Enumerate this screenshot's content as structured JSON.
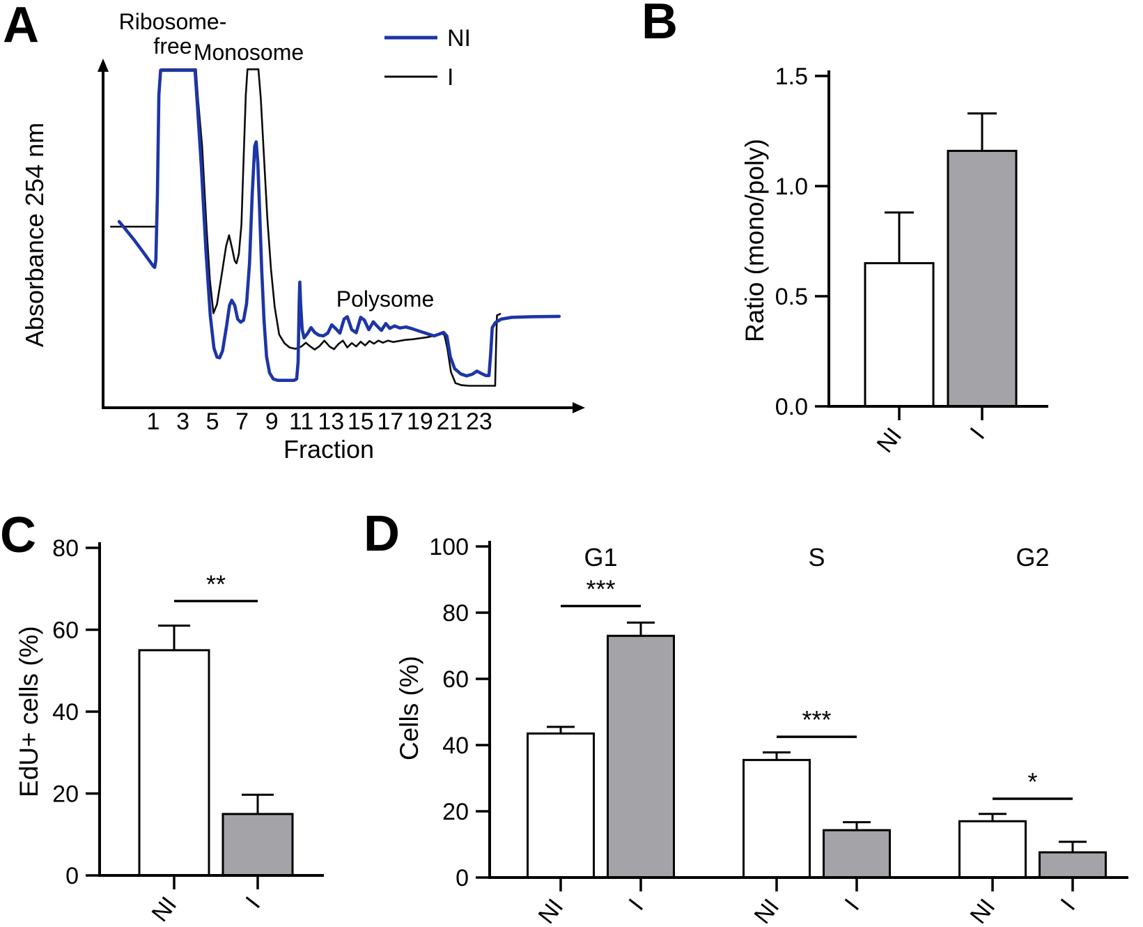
{
  "colors": {
    "ni_bar_fill": "#ffffff",
    "i_bar_fill": "#a3a3a8",
    "trace_blue": "#1d35a6",
    "trace_black": "#0a0a0a"
  },
  "chart_data": [
    {
      "panel_label": "A",
      "type": "line",
      "xlabel": "Fraction",
      "ylabel": "Absorbance 254 nm",
      "xlim": [
        -2.5,
        29.5
      ],
      "ylim": [
        0,
        1.05
      ],
      "x_ticks": [
        {
          "value": 1,
          "label": "1"
        },
        {
          "value": 3,
          "label": "3"
        },
        {
          "value": 5,
          "label": "5"
        },
        {
          "value": 7,
          "label": "7"
        },
        {
          "value": 9,
          "label": "9"
        },
        {
          "value": 11,
          "label": "11"
        },
        {
          "value": 13,
          "label": "13"
        },
        {
          "value": 15,
          "label": "15"
        },
        {
          "value": 17,
          "label": "17"
        },
        {
          "value": 19,
          "label": "19"
        },
        {
          "value": 21,
          "label": "21"
        },
        {
          "value": 23,
          "label": "23"
        }
      ],
      "annotations": {
        "ribosome_free_line1": "Ribosome-",
        "ribosome_free_line2": "free",
        "monosome": "Monosome",
        "polysome": "Polysome"
      },
      "legend": [
        {
          "name": "NI",
          "color": "#1d35a6"
        },
        {
          "name": "I",
          "color": "#0a0a0a"
        }
      ],
      "series": [
        {
          "name": "I",
          "color": "#0a0a0a",
          "stroke_width": 2.6,
          "points": [
            [
              -1.85,
              0.525
            ],
            [
              1.22,
              0.525
            ],
            [
              1.28,
              0.62
            ],
            [
              1.38,
              0.9
            ],
            [
              1.52,
              0.985
            ],
            [
              3.88,
              0.985
            ],
            [
              4.02,
              0.9
            ],
            [
              4.3,
              0.76
            ],
            [
              4.6,
              0.52
            ],
            [
              4.82,
              0.37
            ],
            [
              5.06,
              0.272
            ],
            [
              5.3,
              0.298
            ],
            [
              5.62,
              0.385
            ],
            [
              5.92,
              0.468
            ],
            [
              6.12,
              0.5
            ],
            [
              6.32,
              0.462
            ],
            [
              6.5,
              0.425
            ],
            [
              6.62,
              0.418
            ],
            [
              6.78,
              0.445
            ],
            [
              6.95,
              0.53
            ],
            [
              7.1,
              0.72
            ],
            [
              7.25,
              0.91
            ],
            [
              7.36,
              0.985
            ],
            [
              8.1,
              0.985
            ],
            [
              8.26,
              0.9
            ],
            [
              8.46,
              0.74
            ],
            [
              8.7,
              0.55
            ],
            [
              8.95,
              0.4
            ],
            [
              9.2,
              0.29
            ],
            [
              9.5,
              0.21
            ],
            [
              9.85,
              0.185
            ],
            [
              10.2,
              0.172
            ],
            [
              10.6,
              0.168
            ],
            [
              11.0,
              0.175
            ],
            [
              11.3,
              0.186
            ],
            [
              11.6,
              0.175
            ],
            [
              11.9,
              0.166
            ],
            [
              12.2,
              0.175
            ],
            [
              12.55,
              0.192
            ],
            [
              12.9,
              0.175
            ],
            [
              13.2,
              0.167
            ],
            [
              13.5,
              0.182
            ],
            [
              13.8,
              0.192
            ],
            [
              14.1,
              0.172
            ],
            [
              14.4,
              0.185
            ],
            [
              14.7,
              0.175
            ],
            [
              15.0,
              0.189
            ],
            [
              15.3,
              0.178
            ],
            [
              15.6,
              0.191
            ],
            [
              15.9,
              0.183
            ],
            [
              16.2,
              0.192
            ],
            [
              16.5,
              0.186
            ],
            [
              16.85,
              0.192
            ],
            [
              17.2,
              0.188
            ],
            [
              17.6,
              0.191
            ],
            [
              18.0,
              0.194
            ],
            [
              18.5,
              0.196
            ],
            [
              19.0,
              0.199
            ],
            [
              19.5,
              0.202
            ],
            [
              20.0,
              0.207
            ],
            [
              20.4,
              0.214
            ],
            [
              20.65,
              0.209
            ],
            [
              20.85,
              0.17
            ],
            [
              21.1,
              0.1
            ],
            [
              21.4,
              0.068
            ],
            [
              21.8,
              0.062
            ],
            [
              22.3,
              0.06
            ],
            [
              24.08,
              0.06
            ],
            [
              24.14,
              0.175
            ],
            [
              24.2,
              0.266
            ],
            [
              24.42,
              0.27
            ]
          ]
        },
        {
          "name": "NI",
          "color": "#1d35a6",
          "stroke_width": 4.6,
          "points": [
            [
              -1.3,
              0.54
            ],
            [
              -0.85,
              0.516
            ],
            [
              -0.3,
              0.487
            ],
            [
              0.25,
              0.455
            ],
            [
              0.7,
              0.428
            ],
            [
              1.0,
              0.41
            ],
            [
              1.1,
              0.406
            ],
            [
              1.18,
              0.428
            ],
            [
              1.28,
              0.62
            ],
            [
              1.38,
              0.91
            ],
            [
              1.5,
              0.982
            ],
            [
              3.82,
              0.982
            ],
            [
              3.98,
              0.88
            ],
            [
              4.25,
              0.7
            ],
            [
              4.55,
              0.46
            ],
            [
              4.85,
              0.265
            ],
            [
              5.1,
              0.17
            ],
            [
              5.3,
              0.144
            ],
            [
              5.48,
              0.142
            ],
            [
              5.68,
              0.162
            ],
            [
              5.95,
              0.235
            ],
            [
              6.15,
              0.295
            ],
            [
              6.3,
              0.31
            ],
            [
              6.5,
              0.295
            ],
            [
              6.7,
              0.255
            ],
            [
              6.9,
              0.246
            ],
            [
              7.1,
              0.252
            ],
            [
              7.3,
              0.3
            ],
            [
              7.5,
              0.42
            ],
            [
              7.68,
              0.62
            ],
            [
              7.85,
              0.76
            ],
            [
              7.95,
              0.773
            ],
            [
              8.06,
              0.71
            ],
            [
              8.18,
              0.575
            ],
            [
              8.32,
              0.4
            ],
            [
              8.48,
              0.25
            ],
            [
              8.65,
              0.145
            ],
            [
              8.85,
              0.098
            ],
            [
              9.1,
              0.08
            ],
            [
              9.4,
              0.076
            ],
            [
              10.5,
              0.076
            ],
            [
              10.68,
              0.08
            ],
            [
              10.78,
              0.13
            ],
            [
              10.85,
              0.3
            ],
            [
              10.89,
              0.363
            ],
            [
              10.95,
              0.3
            ],
            [
              11.05,
              0.225
            ],
            [
              11.18,
              0.2
            ],
            [
              11.42,
              0.213
            ],
            [
              11.65,
              0.23
            ],
            [
              11.9,
              0.216
            ],
            [
              12.18,
              0.208
            ],
            [
              12.48,
              0.206
            ],
            [
              12.78,
              0.214
            ],
            [
              13.05,
              0.238
            ],
            [
              13.3,
              0.228
            ],
            [
              13.6,
              0.214
            ],
            [
              13.88,
              0.255
            ],
            [
              14.1,
              0.262
            ],
            [
              14.4,
              0.224
            ],
            [
              14.7,
              0.215
            ],
            [
              15.0,
              0.26
            ],
            [
              15.25,
              0.252
            ],
            [
              15.55,
              0.224
            ],
            [
              15.85,
              0.247
            ],
            [
              16.1,
              0.235
            ],
            [
              16.4,
              0.222
            ],
            [
              16.7,
              0.242
            ],
            [
              16.97,
              0.228
            ],
            [
              17.3,
              0.235
            ],
            [
              17.65,
              0.229
            ],
            [
              18.05,
              0.232
            ],
            [
              18.45,
              0.227
            ],
            [
              18.95,
              0.22
            ],
            [
              19.45,
              0.213
            ],
            [
              19.95,
              0.206
            ],
            [
              20.35,
              0.212
            ],
            [
              20.6,
              0.216
            ],
            [
              20.82,
              0.205
            ],
            [
              21.05,
              0.145
            ],
            [
              21.35,
              0.11
            ],
            [
              21.75,
              0.095
            ],
            [
              22.15,
              0.089
            ],
            [
              22.55,
              0.094
            ],
            [
              22.85,
              0.103
            ],
            [
              23.15,
              0.096
            ],
            [
              23.45,
              0.09
            ],
            [
              23.66,
              0.09
            ],
            [
              23.78,
              0.155
            ],
            [
              23.88,
              0.23
            ],
            [
              24.1,
              0.245
            ],
            [
              24.5,
              0.255
            ],
            [
              25.2,
              0.26
            ],
            [
              26.5,
              0.262
            ],
            [
              28.4,
              0.263
            ]
          ]
        }
      ]
    },
    {
      "panel_label": "B",
      "type": "bar",
      "ylabel": "Ratio (mono/poly)",
      "categories": [
        "NI",
        "I"
      ],
      "values": [
        0.65,
        1.16
      ],
      "errors_up": [
        0.23,
        0.17
      ],
      "bar_colors": [
        "#ffffff",
        "#a3a3a8"
      ],
      "ylim": [
        0,
        1.5
      ],
      "y_ticks": [
        {
          "value": 0,
          "label": "0.0"
        },
        {
          "value": 0.5,
          "label": "0.5"
        },
        {
          "value": 1.0,
          "label": "1.0"
        },
        {
          "value": 1.5,
          "label": "1.5"
        }
      ],
      "significance": []
    },
    {
      "panel_label": "C",
      "type": "bar",
      "ylabel": "EdU+ cells (%)",
      "categories": [
        "NI",
        "I"
      ],
      "values": [
        55,
        15
      ],
      "errors_up": [
        6,
        4.7
      ],
      "bar_colors": [
        "#ffffff",
        "#a3a3a8"
      ],
      "ylim": [
        0,
        80
      ],
      "y_ticks": [
        {
          "value": 0,
          "label": "0"
        },
        {
          "value": 20,
          "label": "20"
        },
        {
          "value": 40,
          "label": "40"
        },
        {
          "value": 60,
          "label": "60"
        },
        {
          "value": 80,
          "label": "80"
        }
      ],
      "significance": [
        {
          "label": "**",
          "y": 67,
          "between": [
            0,
            1
          ]
        }
      ]
    },
    {
      "panel_label": "D",
      "type": "grouped-bar",
      "ylabel": "Cells (%)",
      "groups": [
        "G1",
        "S",
        "G2"
      ],
      "categories": [
        "NI",
        "I"
      ],
      "series": [
        {
          "name": "NI",
          "color": "#ffffff",
          "values": [
            43.5,
            35.5,
            17
          ],
          "errors_up": [
            2,
            2.3,
            2.2
          ]
        },
        {
          "name": "I",
          "color": "#a3a3a8",
          "values": [
            73,
            14.3,
            7.6
          ],
          "errors_up": [
            4,
            2.4,
            3.2
          ]
        }
      ],
      "ylim": [
        0,
        100
      ],
      "y_ticks": [
        {
          "value": 0,
          "label": "0"
        },
        {
          "value": 20,
          "label": "20"
        },
        {
          "value": 40,
          "label": "40"
        },
        {
          "value": 60,
          "label": "60"
        },
        {
          "value": 80,
          "label": "80"
        },
        {
          "value": 100,
          "label": "100"
        }
      ],
      "significance": [
        {
          "group": 0,
          "label": "***",
          "y": 82
        },
        {
          "group": 1,
          "label": "***",
          "y": 42.5
        },
        {
          "group": 2,
          "label": "*",
          "y": 23.8
        }
      ]
    }
  ]
}
